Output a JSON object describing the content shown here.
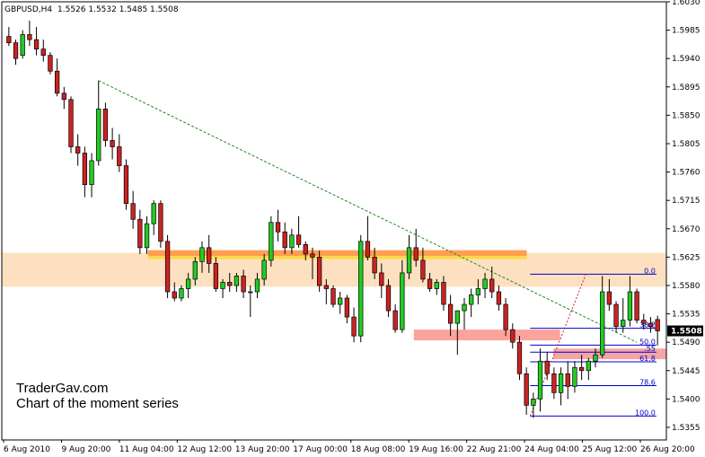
{
  "chart_data": {
    "type": "candlestick",
    "symbol": "GBPUSD",
    "timeframe": "H4",
    "header": {
      "symbol": "GBPUSD,H4",
      "ohlc": "1.5526 1.5532 1.5485 1.5508"
    },
    "last_price": "1.5508",
    "ylim": [
      1.5335,
      1.603
    ],
    "y_ticks": [
      "1.6030",
      "1.5985",
      "1.5940",
      "1.5895",
      "1.5850",
      "1.5805",
      "1.5760",
      "1.5715",
      "1.5670",
      "1.5625",
      "1.5580",
      "1.5535",
      "1.5490",
      "1.5445",
      "1.5400",
      "1.5355"
    ],
    "x_ticks": [
      "6 Aug 2010",
      "9 Aug 20:00",
      "11 Aug 04:00",
      "12 Aug 12:00",
      "13 Aug 20:00",
      "17 Aug 00:00",
      "18 Aug 08:00",
      "19 Aug 16:00",
      "22 Aug 21:00",
      "24 Aug 04:00",
      "25 Aug 12:00",
      "26 Aug 20:00"
    ],
    "bull_color": "#22cc22",
    "bear_color": "#cc2222",
    "candles": [
      [
        1.5975,
        1.599,
        1.596,
        1.5965
      ],
      [
        1.5965,
        1.597,
        1.593,
        1.594
      ],
      [
        1.5945,
        1.5985,
        1.594,
        1.5978
      ],
      [
        1.5978,
        1.6,
        1.596,
        1.597
      ],
      [
        1.597,
        1.599,
        1.5945,
        1.5955
      ],
      [
        1.5955,
        1.597,
        1.5935,
        1.5945
      ],
      [
        1.5945,
        1.595,
        1.5915,
        1.592
      ],
      [
        1.592,
        1.594,
        1.588,
        1.5885
      ],
      [
        1.5885,
        1.5895,
        1.586,
        1.5875
      ],
      [
        1.5875,
        1.588,
        1.579,
        1.58
      ],
      [
        1.58,
        1.582,
        1.577,
        1.579
      ],
      [
        1.579,
        1.58,
        1.572,
        1.574
      ],
      [
        1.574,
        1.579,
        1.572,
        1.5778
      ],
      [
        1.5778,
        1.5905,
        1.577,
        1.586
      ],
      [
        1.586,
        1.587,
        1.58,
        1.581
      ],
      [
        1.581,
        1.583,
        1.578,
        1.58
      ],
      [
        1.58,
        1.582,
        1.576,
        1.577
      ],
      [
        1.577,
        1.578,
        1.57,
        1.571
      ],
      [
        1.571,
        1.573,
        1.567,
        1.5685
      ],
      [
        1.5685,
        1.57,
        1.563,
        1.564
      ],
      [
        1.564,
        1.569,
        1.563,
        1.5678
      ],
      [
        1.5678,
        1.5715,
        1.566,
        1.571
      ],
      [
        1.571,
        1.5715,
        1.564,
        1.565
      ],
      [
        1.565,
        1.566,
        1.556,
        1.557
      ],
      [
        1.557,
        1.5585,
        1.5555,
        1.556
      ],
      [
        1.556,
        1.558,
        1.5555,
        1.5575
      ],
      [
        1.5575,
        1.56,
        1.556,
        1.559
      ],
      [
        1.559,
        1.5625,
        1.558,
        1.5618
      ],
      [
        1.5618,
        1.565,
        1.56,
        1.564
      ],
      [
        1.564,
        1.566,
        1.56,
        1.5615
      ],
      [
        1.5615,
        1.5625,
        1.557,
        1.5575
      ],
      [
        1.5575,
        1.559,
        1.556,
        1.5585
      ],
      [
        1.5585,
        1.56,
        1.557,
        1.558
      ],
      [
        1.558,
        1.56,
        1.557,
        1.5595
      ],
      [
        1.5595,
        1.5605,
        1.556,
        1.557
      ],
      [
        1.557,
        1.558,
        1.553,
        1.557
      ],
      [
        1.557,
        1.56,
        1.556,
        1.559
      ],
      [
        1.559,
        1.563,
        1.558,
        1.562
      ],
      [
        1.562,
        1.569,
        1.561,
        1.568
      ],
      [
        1.568,
        1.57,
        1.565,
        1.5665
      ],
      [
        1.5665,
        1.568,
        1.563,
        1.564
      ],
      [
        1.564,
        1.567,
        1.563,
        1.566
      ],
      [
        1.566,
        1.569,
        1.564,
        1.5645
      ],
      [
        1.5645,
        1.565,
        1.562,
        1.563
      ],
      [
        1.563,
        1.564,
        1.559,
        1.5625
      ],
      [
        1.5625,
        1.5635,
        1.557,
        1.558
      ],
      [
        1.558,
        1.559,
        1.555,
        1.5575
      ],
      [
        1.5575,
        1.558,
        1.5545,
        1.555
      ],
      [
        1.555,
        1.557,
        1.5535,
        1.556
      ],
      [
        1.556,
        1.5565,
        1.552,
        1.553
      ],
      [
        1.553,
        1.5545,
        1.549,
        1.55
      ],
      [
        1.55,
        1.566,
        1.549,
        1.565
      ],
      [
        1.565,
        1.569,
        1.562,
        1.5625
      ],
      [
        1.5625,
        1.564,
        1.559,
        1.56
      ],
      [
        1.56,
        1.5615,
        1.556,
        1.558
      ],
      [
        1.558,
        1.559,
        1.553,
        1.554
      ],
      [
        1.554,
        1.555,
        1.5505,
        1.551
      ],
      [
        1.551,
        1.562,
        1.5505,
        1.56
      ],
      [
        1.56,
        1.566,
        1.559,
        1.564
      ],
      [
        1.564,
        1.567,
        1.561,
        1.562
      ],
      [
        1.562,
        1.564,
        1.5585,
        1.559
      ],
      [
        1.559,
        1.56,
        1.557,
        1.5575
      ],
      [
        1.5575,
        1.559,
        1.5565,
        1.5585
      ],
      [
        1.5585,
        1.5595,
        1.554,
        1.555
      ],
      [
        1.555,
        1.5565,
        1.55,
        1.552
      ],
      [
        1.552,
        1.554,
        1.547,
        1.554
      ],
      [
        1.554,
        1.556,
        1.551,
        1.555
      ],
      [
        1.555,
        1.5575,
        1.553,
        1.5565
      ],
      [
        1.5565,
        1.559,
        1.555,
        1.5575
      ],
      [
        1.5575,
        1.56,
        1.556,
        1.559
      ],
      [
        1.559,
        1.561,
        1.556,
        1.557
      ],
      [
        1.557,
        1.558,
        1.554,
        1.555
      ],
      [
        1.555,
        1.556,
        1.55,
        1.551
      ],
      [
        1.551,
        1.552,
        1.548,
        1.549
      ],
      [
        1.549,
        1.55,
        1.543,
        1.544
      ],
      [
        1.544,
        1.545,
        1.5375,
        1.539
      ],
      [
        1.539,
        1.541,
        1.537,
        1.54
      ],
      [
        1.54,
        1.548,
        1.538,
        1.546
      ],
      [
        1.546,
        1.5475,
        1.543,
        1.544
      ],
      [
        1.544,
        1.545,
        1.54,
        1.541
      ],
      [
        1.541,
        1.545,
        1.539,
        1.544
      ],
      [
        1.544,
        1.546,
        1.54,
        1.542
      ],
      [
        1.542,
        1.546,
        1.541,
        1.545
      ],
      [
        1.545,
        1.547,
        1.543,
        1.5445
      ],
      [
        1.5445,
        1.5465,
        1.543,
        1.546
      ],
      [
        1.546,
        1.548,
        1.545,
        1.547
      ],
      [
        1.547,
        1.5595,
        1.5465,
        1.557
      ],
      [
        1.557,
        1.559,
        1.554,
        1.555
      ],
      [
        1.555,
        1.5555,
        1.5505,
        1.5515
      ],
      [
        1.5515,
        1.556,
        1.5505,
        1.5525
      ],
      [
        1.5525,
        1.5595,
        1.5515,
        1.557
      ],
      [
        1.557,
        1.5575,
        1.552,
        1.5525
      ],
      [
        1.5525,
        1.5535,
        1.551,
        1.552
      ],
      [
        1.552,
        1.553,
        1.5505,
        1.5515
      ],
      [
        1.5526,
        1.5532,
        1.5485,
        1.5508
      ]
    ],
    "zones": [
      {
        "name": "upper-supply-zone",
        "y1": 1.5632,
        "y2": 1.5578,
        "x1": 0.0,
        "x2": 1.0,
        "color": "#fde0c0"
      },
      {
        "name": "resistance-band-orange",
        "y1": 1.5636,
        "y2": 1.5626,
        "x1": 0.22,
        "x2": 0.79,
        "color": "#ff9f50"
      },
      {
        "name": "resistance-band-yellow",
        "y1": 1.5627,
        "y2": 1.5622,
        "x1": 0.22,
        "x2": 0.79,
        "color": "#ffd84a"
      },
      {
        "name": "lower-support-zone",
        "y1": 1.551,
        "y2": 1.5493,
        "x1": 0.62,
        "x2": 0.84,
        "color": "#fca39b"
      },
      {
        "name": "fib-retrace-zone",
        "y1": 1.548,
        "y2": 1.5463,
        "x1": 0.83,
        "x2": 1.0,
        "color": "#f5a5a5"
      }
    ],
    "trendline": {
      "from_price": 1.5905,
      "to_price": 1.549,
      "color": "#228822"
    },
    "fib": {
      "high": 1.5598,
      "low": 1.5373,
      "levels": [
        {
          "ratio": 0.0,
          "label": "0.0"
        },
        {
          "ratio": 0.382,
          "label": "38.2"
        },
        {
          "ratio": 0.5,
          "label": "50.0"
        },
        {
          "ratio": 0.55,
          "label": ".55"
        },
        {
          "ratio": 0.618,
          "label": "61.8"
        },
        {
          "ratio": 0.786,
          "label": "78.6"
        },
        {
          "ratio": 1.0,
          "label": "100.0"
        }
      ],
      "color": "#0000cc"
    }
  },
  "watermark": {
    "line1": "TraderGav.com",
    "line2": "Chart of the moment series"
  }
}
